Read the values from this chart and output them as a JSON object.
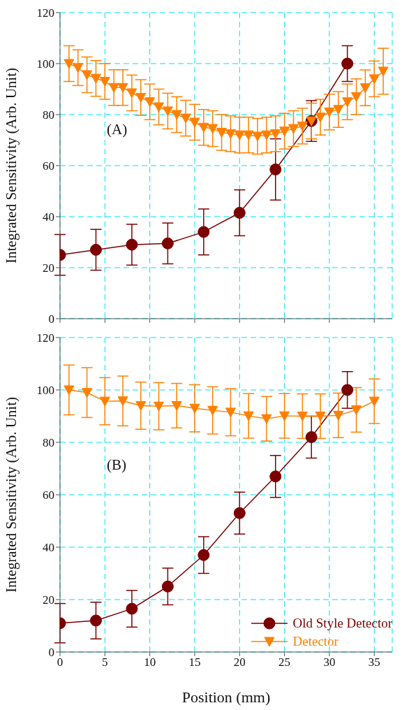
{
  "chart_data": [
    {
      "type": "line",
      "ylabel": "Integrated Sensitivity (Arb. Unit)",
      "xlim": [
        0,
        37
      ],
      "xticks": [
        0,
        5,
        10,
        15,
        20,
        25,
        30,
        35
      ],
      "ylim": [
        0,
        120
      ],
      "yticks": [
        0,
        20,
        40,
        60,
        80,
        100,
        120
      ],
      "grid": true,
      "legend": false,
      "tick_labels": "y",
      "annotations": [
        "(A)"
      ],
      "series": [
        {
          "color": "#7b0000",
          "marker": "circle",
          "x": [
            0,
            4,
            8,
            12,
            16,
            20,
            24,
            28,
            32
          ],
          "values": [
            25,
            27,
            29,
            29.5,
            34,
            41.5,
            58.5,
            77.5,
            100
          ],
          "errors": [
            8,
            8,
            8,
            8,
            9,
            9,
            12,
            8,
            7
          ]
        },
        {
          "color": "#ff8000",
          "marker": "triangle",
          "x": [
            1,
            2,
            3,
            4,
            5,
            6,
            7,
            8,
            9,
            10,
            11,
            12,
            13,
            14,
            15,
            16,
            17,
            18,
            19,
            20,
            21,
            22,
            23,
            24,
            25,
            26,
            27,
            28,
            29,
            30,
            31,
            32,
            33,
            34,
            35,
            36
          ],
          "values": [
            100,
            98.4,
            95.6,
            94.2,
            93,
            90.6,
            90.6,
            88.5,
            86.7,
            85,
            83,
            81.4,
            80,
            78.6,
            77,
            75,
            74.5,
            73,
            72.5,
            72,
            72,
            71.5,
            72,
            72.5,
            73.5,
            74.5,
            75.5,
            77.5,
            79,
            81,
            82,
            85,
            87,
            90.5,
            94,
            97
          ],
          "errors": [
            7,
            7,
            7,
            7,
            7,
            7,
            7,
            7,
            7,
            7,
            7,
            7,
            7,
            7,
            7,
            7,
            7,
            7,
            7,
            7,
            7,
            7,
            7,
            7,
            7,
            7,
            7,
            7,
            7,
            7,
            7,
            7,
            7,
            7,
            7,
            9
          ]
        }
      ]
    },
    {
      "type": "line",
      "xlabel": "Position (mm)",
      "ylabel": "Integrated Sensitivity (Arb. Unit)",
      "xlim": [
        0,
        37
      ],
      "xticks": [
        0,
        5,
        10,
        15,
        20,
        25,
        30,
        35
      ],
      "ylim": [
        0,
        120
      ],
      "yticks": [
        0,
        20,
        40,
        60,
        80,
        100,
        120
      ],
      "grid": true,
      "legend": "bottom right",
      "annotations": [
        "(B)"
      ],
      "series": [
        {
          "name": "Old Style Detector",
          "color": "#7b0000",
          "marker": "circle",
          "x": [
            0,
            4,
            8,
            12,
            16,
            20,
            24,
            28,
            32
          ],
          "values": [
            11,
            12,
            16.5,
            25,
            37,
            53,
            67,
            82,
            100
          ],
          "errors": [
            7.5,
            7,
            7,
            7,
            7,
            8,
            8,
            8,
            7
          ]
        },
        {
          "name": "Detector",
          "color": "#ff8000",
          "marker": "triangle",
          "x": [
            1,
            3,
            5,
            7,
            9,
            11,
            13,
            15,
            17,
            19,
            21,
            23,
            25,
            27,
            29,
            31,
            33,
            35
          ],
          "values": [
            100,
            99,
            95.7,
            95.8,
            94,
            93.8,
            94,
            93,
            92.2,
            91.5,
            90.1,
            89,
            90.1,
            90,
            90,
            90.3,
            92.4,
            95.7
          ],
          "errors": [
            9.5,
            9.5,
            9,
            9.5,
            9,
            9,
            8.5,
            9,
            9,
            9,
            8.5,
            8.5,
            8.5,
            8.5,
            8.5,
            8.5,
            8.5,
            8.5
          ]
        }
      ]
    }
  ]
}
